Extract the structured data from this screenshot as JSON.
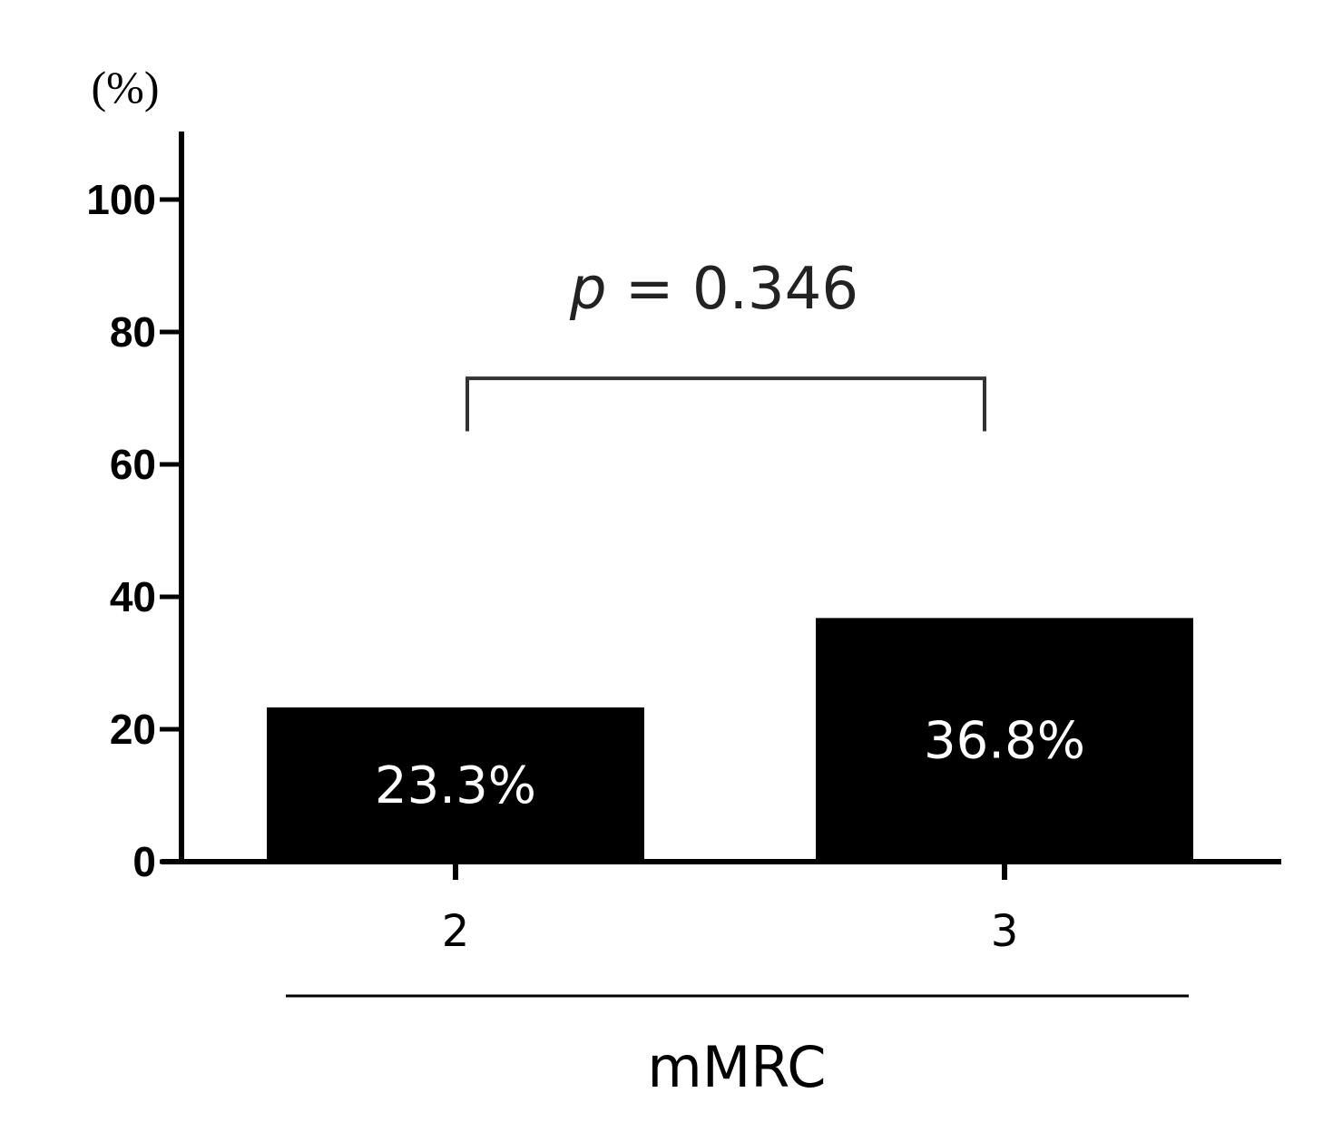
{
  "chart_data": {
    "type": "bar",
    "categories": [
      "2",
      "3"
    ],
    "values": [
      23.3,
      36.8
    ],
    "value_labels": [
      "23.3%",
      "36.8%"
    ],
    "ylim": [
      0,
      110
    ],
    "yticks": [
      0,
      20,
      40,
      60,
      80,
      100
    ],
    "y_unit": "(%)",
    "xlabel": "mMRC",
    "bar_color": "#000000",
    "bar_label_color": "#ffffff",
    "significance": {
      "italic_part": "p",
      "rest": " = 0.346",
      "between": [
        0,
        1
      ],
      "bracket_bottom": 65,
      "bracket_top": 73
    },
    "grid": false,
    "legend": "none"
  }
}
